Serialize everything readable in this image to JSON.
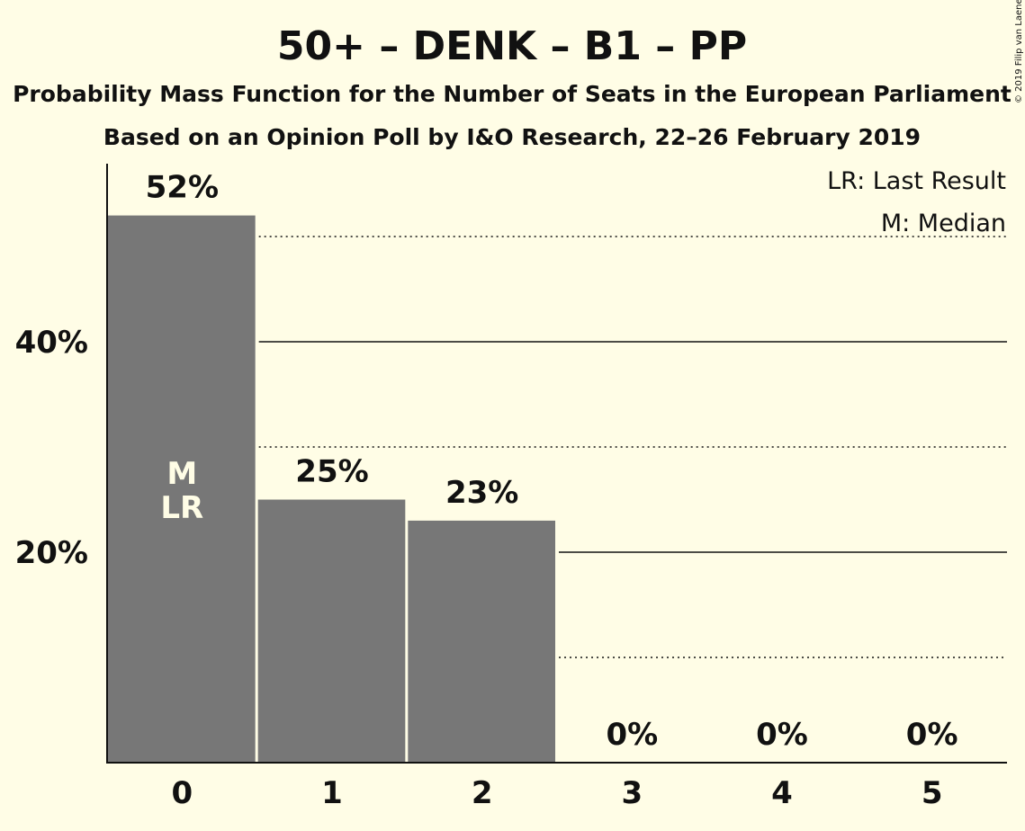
{
  "chart_data": {
    "type": "bar",
    "title": "50+ – DENK – B1 – PP",
    "subtitle": "Probability Mass Function for the Number of Seats in the European Parliament",
    "subtitle2": "Based on an Opinion Poll by I&O Research, 22–26 February 2019",
    "categories": [
      "0",
      "1",
      "2",
      "3",
      "4",
      "5"
    ],
    "values": [
      52,
      25,
      23,
      0,
      0,
      0
    ],
    "value_labels": [
      "52%",
      "25%",
      "23%",
      "0%",
      "0%",
      "0%"
    ],
    "bar_color": "#777777",
    "ylim": [
      0,
      57
    ],
    "yticks": [
      {
        "value": 20,
        "label": "20%"
      },
      {
        "value": 40,
        "label": "40%"
      }
    ],
    "solid_gridlines": [
      20,
      40
    ],
    "dotted_gridlines": [
      10,
      30,
      50
    ],
    "markers": [
      {
        "category": "0",
        "text": "M"
      },
      {
        "category": "0",
        "text": "LR"
      }
    ],
    "legend": [
      "LR: Last Result",
      "M: Median"
    ],
    "legend_position": "top-right",
    "copyright": "© 2019 Filip van Laenen"
  }
}
